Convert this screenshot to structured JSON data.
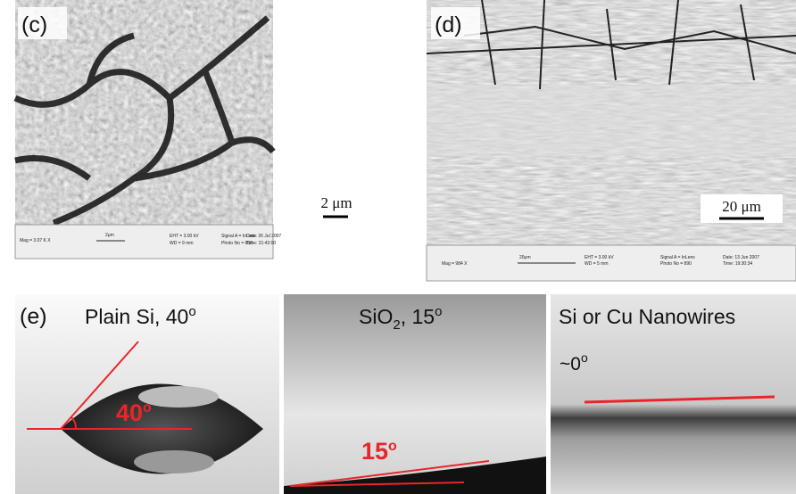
{
  "panel_c": {
    "label": "(c)",
    "scale_bar": "2 μm",
    "info_bar": [
      "Mag = 3.07 K X",
      "2μm",
      "EHT = 3.00 kV",
      "WD = 9 mm",
      "Signal A = InLens",
      "Photo No = 858",
      "Date: 26 Jul 2007",
      "Time: 21:43:00"
    ]
  },
  "panel_d": {
    "label": "(d)",
    "scale_bar": "20 μm",
    "info_bar": [
      "Mag = 984 X",
      "20μm",
      "EHT = 3.00 kV",
      "WD = 5 mm",
      "Signal A = InLens",
      "Photo No = 890",
      "Date: 13 Jun 2007",
      "Time: 19:30:34"
    ]
  },
  "panel_e": {
    "label": "(e)",
    "plain_si": {
      "title": "Plain Si, 40",
      "degree": "o",
      "angle": "40",
      "angle_degree": "o"
    },
    "sio2": {
      "title_main": "SiO",
      "title_sub": "2",
      "title_rest": ", 15",
      "degree": "o",
      "angle": "15",
      "angle_degree": "o"
    },
    "nanowires": {
      "title": "Si or Cu Nanowires",
      "angle": "~0",
      "degree": "o"
    }
  }
}
